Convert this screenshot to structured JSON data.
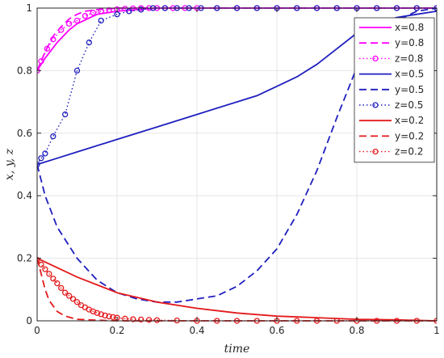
{
  "chart_data": {
    "type": "line",
    "xlabel": "time",
    "ylabel": "x, y, z",
    "xlim": [
      0,
      1
    ],
    "ylim": [
      0,
      1
    ],
    "xticks": [
      0,
      0.2,
      0.4,
      0.6,
      0.8,
      1
    ],
    "xtick_labels": [
      "0",
      "0.2",
      "0.4",
      "0.6",
      "0.8",
      "1"
    ],
    "yticks": [
      0,
      0.2,
      0.4,
      0.6,
      0.8,
      1
    ],
    "ytick_labels": [
      "0",
      "0.2",
      "0.4",
      "0.6",
      "0.8",
      "1"
    ],
    "grid": true,
    "legend_position": "top-right",
    "series": [
      {
        "name": "x=0.8",
        "color": "#ff00ff",
        "style": "solid",
        "marker": "none",
        "x": [
          0,
          0.02,
          0.05,
          0.08,
          0.1,
          0.15,
          0.2,
          0.25,
          0.3,
          0.4,
          0.5,
          0.6,
          0.8,
          1
        ],
        "y": [
          0.8,
          0.84,
          0.89,
          0.93,
          0.95,
          0.98,
          0.99,
          0.995,
          1.0,
          1.0,
          1.0,
          1.0,
          1.0,
          1.0
        ]
      },
      {
        "name": "y=0.8",
        "color": "#ff00ff",
        "style": "dashed",
        "marker": "none",
        "x": [
          0,
          0.02,
          0.04,
          0.06,
          0.08,
          0.1,
          0.12,
          0.15,
          0.2,
          0.3,
          0.5,
          1
        ],
        "y": [
          0.8,
          0.86,
          0.91,
          0.94,
          0.965,
          0.98,
          0.99,
          0.995,
          1.0,
          1.0,
          1.0,
          1.0
        ]
      },
      {
        "name": "z=0.8",
        "color": "#ff00ff",
        "style": "dotted",
        "marker": "circle",
        "x": [
          0,
          0.01,
          0.025,
          0.04,
          0.06,
          0.08,
          0.1,
          0.12,
          0.14,
          0.16,
          0.18,
          0.2,
          0.22,
          0.24,
          0.26,
          0.28,
          0.3,
          0.32,
          0.34,
          0.37,
          0.4,
          0.45,
          0.5,
          0.55,
          0.6,
          0.65,
          0.7,
          0.75,
          0.8,
          0.85,
          0.9,
          0.95,
          1.0
        ],
        "y": [
          0.8,
          0.83,
          0.87,
          0.9,
          0.93,
          0.95,
          0.96,
          0.975,
          0.985,
          0.99,
          0.993,
          0.996,
          0.998,
          0.999,
          1.0,
          1.0,
          1.0,
          1.0,
          1.0,
          1.0,
          1.0,
          1.0,
          1.0,
          1.0,
          1.0,
          1.0,
          1.0,
          1.0,
          1.0,
          1.0,
          1.0,
          1.0,
          1.0
        ]
      },
      {
        "name": "x=0.5",
        "color": "#1f1fbf",
        "style": "solid",
        "marker": "none",
        "x": [
          0,
          0.05,
          0.1,
          0.2,
          0.3,
          0.4,
          0.5,
          0.55,
          0.6,
          0.65,
          0.7,
          0.75,
          0.8,
          0.85,
          0.9,
          0.95,
          1.0
        ],
        "y": [
          0.5,
          0.52,
          0.54,
          0.58,
          0.62,
          0.66,
          0.7,
          0.72,
          0.75,
          0.78,
          0.82,
          0.87,
          0.92,
          0.95,
          0.97,
          0.98,
          0.99
        ]
      },
      {
        "name": "y=0.5",
        "color": "#1f1fbf",
        "style": "dashed",
        "marker": "none",
        "x": [
          0,
          0.02,
          0.05,
          0.1,
          0.15,
          0.2,
          0.25,
          0.3,
          0.35,
          0.4,
          0.45,
          0.5,
          0.55,
          0.6,
          0.65,
          0.7,
          0.75,
          0.8,
          0.85,
          0.9,
          0.95,
          1.0
        ],
        "y": [
          0.5,
          0.4,
          0.3,
          0.2,
          0.13,
          0.09,
          0.07,
          0.06,
          0.06,
          0.07,
          0.08,
          0.11,
          0.16,
          0.23,
          0.34,
          0.48,
          0.65,
          0.81,
          0.91,
          0.96,
          0.99,
          1.0
        ]
      },
      {
        "name": "z=0.5",
        "color": "#1f1fbf",
        "style": "dotted",
        "marker": "circle",
        "x": [
          0,
          0.01,
          0.02,
          0.04,
          0.07,
          0.1,
          0.13,
          0.16,
          0.2,
          0.23,
          0.26,
          0.29,
          0.32,
          0.35,
          0.38,
          0.41,
          0.45,
          0.5,
          0.55,
          0.6,
          0.65,
          0.7,
          0.75,
          0.8,
          0.85,
          0.9,
          0.95,
          1.0
        ],
        "y": [
          0.5,
          0.52,
          0.535,
          0.59,
          0.66,
          0.8,
          0.89,
          0.96,
          0.98,
          0.99,
          0.995,
          1.0,
          1.0,
          1.0,
          1.0,
          1.0,
          1.0,
          1.0,
          1.0,
          1.0,
          1.0,
          1.0,
          1.0,
          1.0,
          1.0,
          1.0,
          1.0,
          1.0
        ]
      },
      {
        "name": "x=0.2",
        "color": "#e31a1c",
        "style": "solid",
        "marker": "none",
        "x": [
          0,
          0.05,
          0.1,
          0.15,
          0.2,
          0.3,
          0.4,
          0.5,
          0.6,
          0.7,
          0.8,
          0.9,
          1.0
        ],
        "y": [
          0.2,
          0.17,
          0.14,
          0.115,
          0.09,
          0.06,
          0.04,
          0.025,
          0.015,
          0.01,
          0.005,
          0.003,
          0.0
        ]
      },
      {
        "name": "y=0.2",
        "color": "#e31a1c",
        "style": "dashed",
        "marker": "none",
        "x": [
          0,
          0.01,
          0.02,
          0.03,
          0.05,
          0.07,
          0.1,
          0.15,
          0.2,
          0.3,
          0.5,
          1.0
        ],
        "y": [
          0.2,
          0.15,
          0.1,
          0.065,
          0.03,
          0.015,
          0.005,
          0.002,
          0.0,
          0.0,
          0.0,
          0.0
        ]
      },
      {
        "name": "z=0.2",
        "color": "#e31a1c",
        "style": "dotted",
        "marker": "circle",
        "x": [
          0,
          0.01,
          0.02,
          0.03,
          0.04,
          0.05,
          0.06,
          0.07,
          0.08,
          0.09,
          0.1,
          0.11,
          0.12,
          0.13,
          0.14,
          0.15,
          0.16,
          0.17,
          0.18,
          0.19,
          0.2,
          0.22,
          0.24,
          0.26,
          0.28,
          0.3,
          0.35,
          0.4,
          0.45,
          0.5,
          0.55,
          0.6,
          0.65,
          0.7,
          0.75,
          0.8,
          0.85,
          0.9,
          0.95,
          1.0
        ],
        "y": [
          0.195,
          0.18,
          0.165,
          0.15,
          0.135,
          0.12,
          0.105,
          0.09,
          0.08,
          0.07,
          0.06,
          0.05,
          0.043,
          0.036,
          0.03,
          0.025,
          0.021,
          0.017,
          0.014,
          0.012,
          0.01,
          0.007,
          0.005,
          0.004,
          0.003,
          0.002,
          0.001,
          0.0,
          0.0,
          0.0,
          0.0,
          0.0,
          0.0,
          0.0,
          0.0,
          0.0,
          0.0,
          0.0,
          0.0,
          0.0
        ]
      }
    ]
  }
}
